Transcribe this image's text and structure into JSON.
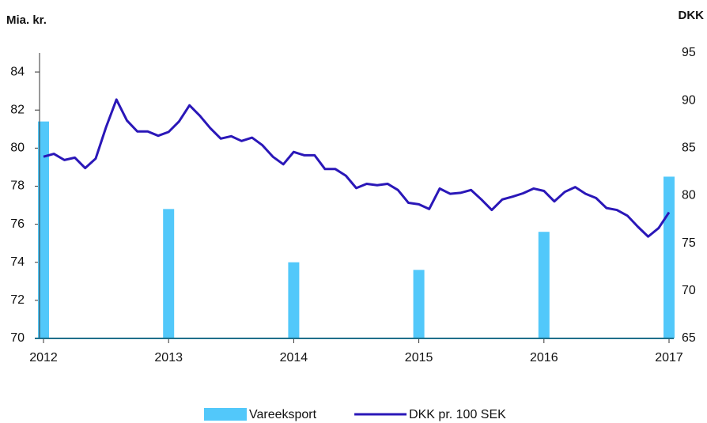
{
  "chart_data": {
    "type": "combo",
    "y_label": "Mia. kr.",
    "y2_label": "DKK",
    "xlim": [
      2012,
      2017
    ],
    "xticks": [
      2012,
      2013,
      2014,
      2015,
      2016,
      2017
    ],
    "ylim": [
      70,
      85
    ],
    "yticks": [
      70,
      72,
      74,
      76,
      78,
      80,
      82,
      84
    ],
    "y2lim": [
      65,
      95
    ],
    "y2ticks": [
      65,
      70,
      75,
      80,
      85,
      90,
      95
    ],
    "series": [
      {
        "name": "Vareeksport",
        "type": "bar",
        "color": "#52c8fa",
        "x": [
          2012,
          2013,
          2014,
          2015,
          2016,
          2017
        ],
        "values": [
          81.4,
          76.8,
          74.0,
          73.6,
          75.6,
          78.5
        ]
      },
      {
        "name": "DKK pr. 100 SEK",
        "type": "line",
        "axis": "y2",
        "color": "#2a17b8",
        "x": [
          2012,
          2012.083,
          2012.167,
          2012.25,
          2012.333,
          2012.417,
          2012.5,
          2012.583,
          2012.667,
          2012.75,
          2012.833,
          2012.917,
          2013,
          2013.083,
          2013.167,
          2013.25,
          2013.333,
          2013.417,
          2013.5,
          2013.583,
          2013.667,
          2013.75,
          2013.833,
          2013.917,
          2014,
          2014.083,
          2014.167,
          2014.25,
          2014.333,
          2014.417,
          2014.5,
          2014.583,
          2014.667,
          2014.75,
          2014.833,
          2014.917,
          2015,
          2015.083,
          2015.167,
          2015.25,
          2015.333,
          2015.417,
          2015.5,
          2015.583,
          2015.667,
          2015.75,
          2015.833,
          2015.917,
          2016,
          2016.083,
          2016.167,
          2016.25,
          2016.333,
          2016.417,
          2016.5,
          2016.583,
          2016.667,
          2016.75,
          2016.833,
          2016.917,
          2017
        ],
        "values": [
          84.1,
          84.4,
          83.75,
          84.0,
          82.9,
          83.9,
          87.2,
          90.1,
          87.9,
          86.75,
          86.75,
          86.3,
          86.7,
          87.8,
          89.5,
          88.4,
          87.1,
          86.0,
          86.25,
          85.75,
          86.1,
          85.3,
          84.1,
          83.3,
          84.6,
          84.25,
          84.25,
          82.8,
          82.8,
          82.1,
          80.8,
          81.25,
          81.1,
          81.25,
          80.6,
          79.25,
          79.1,
          78.6,
          80.75,
          80.2,
          80.3,
          80.6,
          79.6,
          78.5,
          79.6,
          79.9,
          80.25,
          80.75,
          80.5,
          79.4,
          80.4,
          80.9,
          80.2,
          79.75,
          78.7,
          78.5,
          77.9,
          76.75,
          75.7,
          76.6,
          78.25
        ]
      }
    ]
  }
}
